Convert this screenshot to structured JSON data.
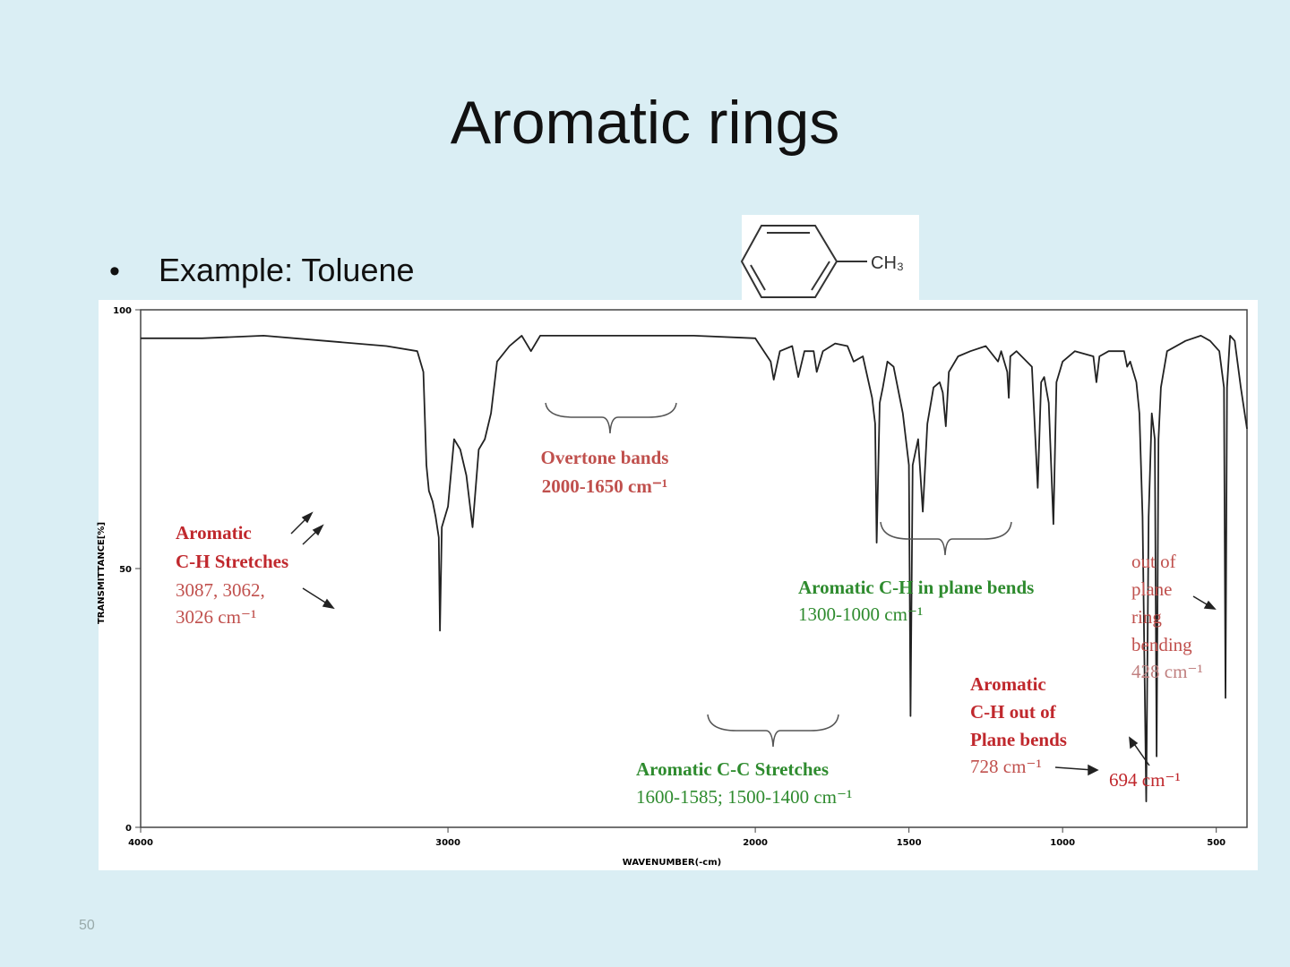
{
  "slide": {
    "title": "Aromatic rings",
    "bullet": "Example: Toluene",
    "page_number": "50",
    "structure_label": "CH₃"
  },
  "chart_data": {
    "type": "line",
    "x_label": "WAVENUMBER(-cm)",
    "y_label": "TRANSMITTANCE[%]",
    "xlim": [
      4000,
      400
    ],
    "ylim": [
      0,
      100
    ],
    "xticks": [
      4000,
      3000,
      2000,
      1500,
      1000,
      500
    ],
    "yticks": [
      0,
      50,
      100
    ],
    "color": "#222222",
    "x": [
      4000,
      3800,
      3600,
      3400,
      3200,
      3100,
      3080,
      3070,
      3062,
      3050,
      3040,
      3030,
      3026,
      3020,
      3000,
      2980,
      2960,
      2940,
      2920,
      2900,
      2880,
      2860,
      2840,
      2800,
      2760,
      2730,
      2700,
      2500,
      2200,
      2000,
      1950,
      1940,
      1920,
      1880,
      1860,
      1840,
      1810,
      1800,
      1780,
      1740,
      1700,
      1680,
      1650,
      1620,
      1610,
      1605,
      1595,
      1585,
      1570,
      1550,
      1520,
      1500,
      1495,
      1488,
      1470,
      1455,
      1440,
      1420,
      1400,
      1390,
      1380,
      1370,
      1340,
      1300,
      1250,
      1210,
      1200,
      1180,
      1175,
      1170,
      1150,
      1100,
      1081,
      1070,
      1060,
      1045,
      1030,
      1020,
      1000,
      960,
      900,
      890,
      880,
      850,
      800,
      790,
      780,
      760,
      750,
      740,
      728,
      720,
      710,
      700,
      694,
      688,
      680,
      660,
      600,
      550,
      520,
      490,
      475,
      470,
      465,
      455,
      440,
      420,
      400
    ],
    "values": [
      94.5,
      94.5,
      95,
      94,
      93,
      92,
      88,
      70,
      65,
      63,
      60,
      56,
      38,
      58,
      62,
      75,
      73,
      68,
      58,
      73,
      75,
      80,
      90,
      93,
      95,
      92,
      95,
      95,
      95,
      94.5,
      90,
      86.5,
      92,
      93,
      87,
      92,
      92,
      88,
      92,
      93.5,
      93,
      90,
      91,
      83,
      78,
      55,
      82,
      85,
      90,
      89,
      80,
      70,
      21.5,
      70,
      75,
      61,
      78,
      85,
      86,
      84,
      77.5,
      88,
      91,
      92,
      93,
      90,
      92,
      88,
      83,
      91,
      92,
      89,
      65.6,
      86,
      87,
      82,
      58.6,
      86,
      90,
      92,
      91,
      86,
      91,
      92,
      92,
      89,
      90,
      86,
      80,
      60,
      5,
      60,
      80,
      75,
      13.7,
      75,
      85,
      92,
      94,
      95,
      94,
      92,
      85,
      25,
      85,
      95,
      94,
      85,
      77
    ]
  },
  "annotations": [
    {
      "lines": [
        "Aromatic",
        "C-H Stretches"
      ],
      "color": "#c0282d"
    },
    {
      "lines": [
        "3087, 3062,",
        "3026 cm⁻¹"
      ],
      "color": "#c0504d"
    },
    {
      "lines": [
        "Overtone bands",
        "2000-1650 cm⁻¹"
      ],
      "color": "#c0504d"
    },
    {
      "lines": [
        "Aromatic C-H  in plane bends"
      ],
      "color": "#2e8b2e"
    },
    {
      "lines": [
        "1300-1000 cm⁻¹"
      ],
      "color": "#2e8b2e"
    },
    {
      "lines": [
        "Aromatic C-C  Stretches"
      ],
      "color": "#2e8b2e"
    },
    {
      "lines": [
        "1600-1585; 1500-1400 cm⁻¹"
      ],
      "color": "#2e8b2e"
    },
    {
      "lines": [
        "out of",
        "plane",
        "ring",
        "bending"
      ],
      "color": "#c0504d"
    },
    {
      "lines": [
        "428 cm⁻¹"
      ],
      "color": "#c08080"
    },
    {
      "lines": [
        "Aromatic",
        "C-H out of",
        "Plane bends"
      ],
      "color": "#c0282d"
    },
    {
      "lines": [
        "728 cm⁻¹"
      ],
      "color": "#c0504d"
    },
    {
      "lines": [
        "694 cm⁻¹"
      ],
      "color": "#c0282d"
    }
  ]
}
